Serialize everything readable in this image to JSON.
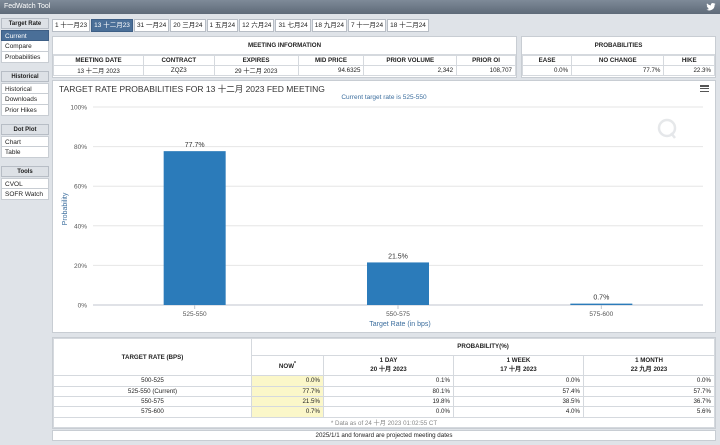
{
  "window": {
    "title": "FedWatch Tool"
  },
  "sidebar": {
    "sections": [
      {
        "title": "Target Rate",
        "items": [
          "Current",
          "Compare",
          "Probabilities"
        ]
      },
      {
        "title": "Historical",
        "items": [
          "Historical",
          "Downloads",
          "Prior Hikes"
        ]
      },
      {
        "title": "Dot Plot",
        "items": [
          "Chart",
          "Table"
        ]
      },
      {
        "title": "Tools",
        "items": [
          "CVOL",
          "SOFR Watch"
        ]
      }
    ],
    "active_item": "Current"
  },
  "tabs": [
    "1 十一月23",
    "13 十二月23",
    "31 一月24",
    "20 三月24",
    "1 五月24",
    "12 六月24",
    "31 七月24",
    "18 九月24",
    "7 十一月24",
    "18 十二月24"
  ],
  "active_tab_index": 1,
  "meeting_info": {
    "group_title": "MEETING INFORMATION",
    "headers": [
      "MEETING DATE",
      "CONTRACT",
      "EXPIRES",
      "MID PRICE",
      "PRIOR VOLUME",
      "PRIOR OI"
    ],
    "row": [
      "13 十二月 2023",
      "ZQZ3",
      "29 十二月 2023",
      "94.6325",
      "2,342",
      "108,707"
    ]
  },
  "probabilities": {
    "group_title": "PROBABILITIES",
    "headers": [
      "EASE",
      "NO CHANGE",
      "HIKE"
    ],
    "row": [
      "0.0%",
      "77.7%",
      "22.3%"
    ]
  },
  "chart_panel": {
    "title": "TARGET RATE PROBABILITIES FOR 13 十二月 2023 FED MEETING",
    "subtitle": "Current target rate is 525-550",
    "menu_icon": "hamburger-menu-icon",
    "watermark_icon": "q-watermark-icon"
  },
  "chart_data": {
    "type": "bar",
    "categories": [
      "525-550",
      "550-575",
      "575-600"
    ],
    "values": [
      77.7,
      21.5,
      0.7
    ],
    "value_labels": [
      "77.7%",
      "21.5%",
      "0.7%"
    ],
    "xlabel": "Target Rate (in bps)",
    "ylabel": "Probability",
    "ylim": [
      0,
      100
    ],
    "yticks": [
      "0%",
      "20%",
      "40%",
      "60%",
      "80%",
      "100%"
    ],
    "ytick_values": [
      0,
      20,
      40,
      60,
      80,
      100
    ],
    "grid": true,
    "bar_color": "#2b7bba"
  },
  "prob_table": {
    "group_title": "PROBABILITY(%)",
    "rate_header": "TARGET RATE (BPS)",
    "col_headers": [
      {
        "line1": "NOW",
        "line2": "",
        "mark": "*"
      },
      {
        "line1": "1 DAY",
        "line2": "20 十月 2023"
      },
      {
        "line1": "1 WEEK",
        "line2": "17 十月 2023"
      },
      {
        "line1": "1 MONTH",
        "line2": "22 九月 2023"
      }
    ],
    "rows": [
      {
        "rate": "500-525",
        "now": "0.0%",
        "day": "0.1%",
        "week": "0.0%",
        "month": "0.0%"
      },
      {
        "rate": "525-550 (Current)",
        "now": "77.7%",
        "day": "80.1%",
        "week": "57.4%",
        "month": "57.7%"
      },
      {
        "rate": "550-575",
        "now": "21.5%",
        "day": "19.8%",
        "week": "38.5%",
        "month": "36.7%"
      },
      {
        "rate": "575-600",
        "now": "0.7%",
        "day": "0.0%",
        "week": "4.0%",
        "month": "5.6%"
      }
    ],
    "footnote": "* Data as of 24 十月 2023 01:02:55 CT"
  },
  "bottom_note": "2025/1/1 and forward are projected meeting dates",
  "colors": {
    "accent": "#4a6f98",
    "bar": "#2b7bba",
    "now_highlight": "#fbf7c9",
    "subtitle": "#3c6e9e"
  }
}
